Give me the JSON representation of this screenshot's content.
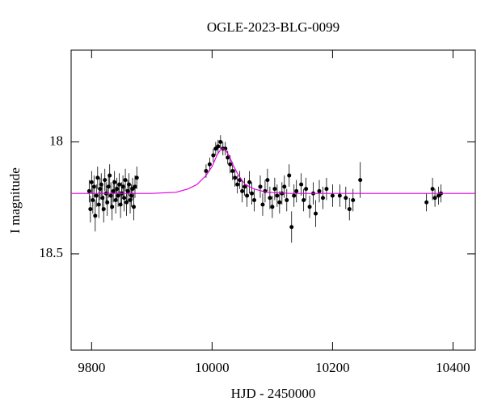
{
  "chart_data": {
    "type": "scatter",
    "title": "OGLE-2023-BLG-0099",
    "xlabel": "HJD - 2450000",
    "ylabel": "I magnitude",
    "xlim": [
      9766,
      10437
    ],
    "ylim": [
      17.59,
      18.93
    ],
    "y_inverted": true,
    "xticks": [
      9800,
      10000,
      10200,
      10400
    ],
    "yticks": [
      18,
      18.5
    ],
    "series": [
      {
        "mark": "point",
        "color": "#000000",
        "x": [
          9796,
          9798,
          9800,
          9802,
          9804,
          9806,
          9808,
          9810,
          9812,
          9814,
          9816,
          9818,
          9820,
          9822,
          9824,
          9826,
          9828,
          9830,
          9832,
          9834,
          9836,
          9838,
          9840,
          9842,
          9844,
          9846,
          9848,
          9850,
          9852,
          9854,
          9856,
          9858,
          9860,
          9862,
          9864,
          9866,
          9868,
          9870,
          9872,
          9875,
          9990,
          9996,
          10002,
          10006,
          10010,
          10014,
          10018,
          10022,
          10026,
          10030,
          10034,
          10038,
          10042,
          10046,
          10050,
          10054,
          10058,
          10062,
          10066,
          10070,
          10080,
          10084,
          10088,
          10092,
          10096,
          10100,
          10104,
          10108,
          10112,
          10116,
          10120,
          10124,
          10128,
          10132,
          10136,
          10140,
          10148,
          10152,
          10156,
          10162,
          10168,
          10172,
          10178,
          10184,
          10190,
          10200,
          10212,
          10222,
          10228,
          10234,
          10246,
          10356,
          10366,
          10370,
          10376,
          10380
        ],
        "values": [
          18.22,
          18.3,
          18.18,
          18.26,
          18.2,
          18.33,
          18.24,
          18.16,
          18.28,
          18.21,
          18.19,
          18.25,
          18.3,
          18.17,
          18.23,
          18.27,
          18.2,
          18.15,
          18.24,
          18.29,
          18.22,
          18.18,
          18.26,
          18.21,
          18.24,
          18.19,
          18.28,
          18.23,
          18.2,
          18.25,
          18.17,
          18.27,
          18.22,
          18.19,
          18.26,
          18.24,
          18.21,
          18.29,
          18.2,
          18.16,
          18.13,
          18.1,
          18.06,
          18.03,
          18.02,
          18.0,
          18.03,
          18.03,
          18.07,
          18.1,
          18.13,
          18.16,
          18.19,
          18.17,
          18.22,
          18.2,
          18.24,
          18.18,
          18.23,
          18.26,
          18.2,
          18.28,
          18.22,
          18.17,
          18.25,
          18.29,
          18.21,
          18.24,
          18.27,
          18.23,
          18.2,
          18.26,
          18.15,
          18.38,
          18.24,
          18.22,
          18.19,
          18.26,
          18.21,
          18.29,
          18.23,
          18.32,
          18.22,
          18.25,
          18.21,
          18.24,
          18.24,
          18.25,
          18.3,
          18.26,
          18.17,
          18.27,
          18.21,
          18.25,
          18.24,
          18.23
        ],
        "errors": [
          0.05,
          0.06,
          0.05,
          0.06,
          0.05,
          0.07,
          0.05,
          0.05,
          0.06,
          0.05,
          0.05,
          0.06,
          0.06,
          0.05,
          0.05,
          0.06,
          0.05,
          0.05,
          0.06,
          0.06,
          0.05,
          0.05,
          0.06,
          0.05,
          0.05,
          0.05,
          0.06,
          0.05,
          0.05,
          0.06,
          0.05,
          0.06,
          0.05,
          0.05,
          0.06,
          0.05,
          0.05,
          0.06,
          0.05,
          0.05,
          0.03,
          0.03,
          0.03,
          0.03,
          0.03,
          0.03,
          0.03,
          0.03,
          0.03,
          0.04,
          0.04,
          0.04,
          0.04,
          0.04,
          0.05,
          0.04,
          0.05,
          0.05,
          0.05,
          0.05,
          0.05,
          0.05,
          0.05,
          0.05,
          0.05,
          0.05,
          0.05,
          0.05,
          0.05,
          0.05,
          0.05,
          0.05,
          0.05,
          0.07,
          0.05,
          0.05,
          0.05,
          0.05,
          0.05,
          0.05,
          0.05,
          0.06,
          0.05,
          0.05,
          0.05,
          0.05,
          0.05,
          0.05,
          0.05,
          0.05,
          0.08,
          0.04,
          0.05,
          0.04,
          0.04,
          0.04
        ]
      },
      {
        "mark": "line",
        "color": "#e000e0",
        "x": [
          9766,
          9900,
          9940,
          9960,
          9975,
          9990,
          10000,
          10008,
          10014,
          10018,
          10022,
          10028,
          10036,
          10044,
          10055,
          10070,
          10090,
          10130,
          10437
        ],
        "values": [
          18.23,
          18.23,
          18.225,
          18.21,
          18.19,
          18.15,
          18.11,
          18.06,
          18.035,
          18.03,
          18.035,
          18.06,
          18.11,
          18.15,
          18.19,
          18.21,
          18.225,
          18.23,
          18.23
        ]
      }
    ]
  }
}
